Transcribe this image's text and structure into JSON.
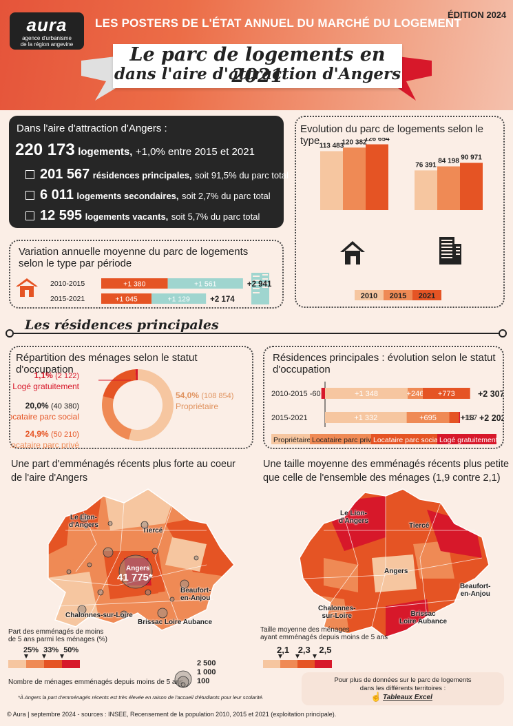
{
  "header": {
    "logo_word": "aura",
    "logo_sub1": "agence d'urbanisme",
    "logo_sub2": "de la région angevine",
    "posters": "LES POSTERS DE L'ÉTAT ANNUEL DU MARCHÉ DU LOGEMENT",
    "edition": "ÉDITION 2024",
    "title_line1": "Le parc de logements en 2021",
    "title_line2": "dans l'aire d'attraction d'Angers"
  },
  "summary": {
    "intro": "Dans l'aire d'attraction d'Angers :",
    "total_value": "220 173",
    "total_label": "logements,",
    "total_note": "+1,0% entre 2015 et 2021",
    "items": [
      {
        "value": "201 567",
        "label": "résidences principales,",
        "note": "soit 91,5% du parc total"
      },
      {
        "value": "6 011",
        "label": "logements secondaires,",
        "note": "soit 2,7% du parc total"
      },
      {
        "value": "12 595",
        "label": "logements vacants,",
        "note": "soit 5,7% du parc total"
      }
    ]
  },
  "sections": {
    "residences_title": "Les résidences principales"
  },
  "chart_data": [
    {
      "id": "evolution",
      "type": "bar",
      "title": "Evolution du parc de logements selon le type",
      "categories": [
        "Maisons",
        "Appartements"
      ],
      "icons": [
        "house-icon",
        "building-icon"
      ],
      "series": [
        {
          "name": "2010",
          "values": [
            113483,
            76391
          ],
          "labels": [
            "113 483",
            "76 391"
          ],
          "color": "#f6c6a0"
        },
        {
          "name": "2015",
          "values": [
            120382,
            84198
          ],
          "labels": [
            "120 382",
            "84 198"
          ],
          "color": "#ef8a55"
        },
        {
          "name": "2021",
          "values": [
            126654,
            90971
          ],
          "labels": [
            "126 654",
            "90 971"
          ],
          "color": "#e55424"
        }
      ]
    },
    {
      "id": "variation",
      "type": "bar",
      "stacked": true,
      "orientation": "horizontal",
      "title": "Variation annuelle moyenne du parc de logements selon le type par période",
      "categories": [
        "2010-2015",
        "2015-2021"
      ],
      "series": [
        {
          "name": "Maisons",
          "values": [
            1380,
            1045
          ],
          "labels": [
            "+1 380",
            "+1 045"
          ],
          "color": "#e55424"
        },
        {
          "name": "Appartements",
          "values": [
            1561,
            1129
          ],
          "labels": [
            "+1 561",
            "+1 129"
          ],
          "color": "#9fd5cf"
        }
      ],
      "totals": [
        "+2 941",
        "+2 174"
      ]
    },
    {
      "id": "repartition",
      "type": "pie",
      "title": "Répartition des ménages selon le statut d'occupation",
      "slices": [
        {
          "name": "Propriétaire",
          "value": 108854,
          "pct": "54,0%",
          "count": "(108 854)",
          "color": "#f6c6a0"
        },
        {
          "name": "Locataire parc privé",
          "value": 50210,
          "pct": "24,9%",
          "count": "(50 210)",
          "color": "#ef8a55"
        },
        {
          "name": "Locataire parc social",
          "value": 40380,
          "pct": "20,0%",
          "count": "(40 380)",
          "color": "#e55424"
        },
        {
          "name": "Logé gratuitement",
          "value": 2122,
          "pct": "1,1%",
          "count": "(2 122)",
          "color": "#d7182a"
        }
      ]
    },
    {
      "id": "rp_evolution",
      "type": "bar",
      "stacked": true,
      "orientation": "horizontal",
      "title": "Résidences principales : évolution selon le statut d'occupation",
      "categories": [
        "2010-2015",
        "2015-2021"
      ],
      "series": [
        {
          "name": "Propriétaire",
          "values": [
            1348,
            1332
          ],
          "labels": [
            "+1 348",
            "+1 332"
          ],
          "color": "#f6c6a0"
        },
        {
          "name": "Locataire parc privé",
          "values": [
            246,
            695
          ],
          "labels": [
            "+246",
            "+695"
          ],
          "color": "#ef8a55"
        },
        {
          "name": "Locataire parc social",
          "values": [
            773,
            157
          ],
          "labels": [
            "+773",
            "+157"
          ],
          "color": "#e55424"
        },
        {
          "name": "Logé gratuitement",
          "values": [
            -60,
            18
          ],
          "labels": [
            "-60",
            "+18"
          ],
          "color": "#d7182a"
        }
      ],
      "totals": [
        "+2 307",
        "+2 202"
      ]
    }
  ],
  "map_left": {
    "title_line1": "Une part d'emménagés récents plus forte au coeur",
    "title_line2": "de l'aire d'Angers",
    "places": [
      "Le Lion-",
      "d'Angers",
      "Tiercé",
      "Angers",
      "41 775*",
      "Beaufort-",
      "en-Anjou",
      "Chalonnes-sur-Loire",
      "Brissac Loire Aubance"
    ],
    "legend_title1": "Part des emménagés de moins",
    "legend_title2": "de 5 ans parmi les ménages (%)",
    "legend_values": [
      "25%",
      "33%",
      "50%"
    ],
    "legend_colors": [
      "#f6c6a0",
      "#ef8a55",
      "#e55424",
      "#d7182a"
    ],
    "circles_title": "Nombre de ménages emménagés depuis moins de 5 ans",
    "circle_values": [
      "2 500",
      "1 000",
      "100"
    ],
    "footnote": "*À Angers la part d'emménagés récents est très élevée en raison de l'accueil d'étudiants pour leur scolarité."
  },
  "map_right": {
    "title_line1": "Une taille moyenne des emménagés récents  plus petite",
    "title_line2": "que celle de l'ensemble des ménages (1,9 contre 2,1)",
    "places": [
      "Le Lion-",
      "d'Angers",
      "Tiercé",
      "Angers",
      "Beaufort-",
      "en-Anjou",
      "Chalonnes-",
      "sur-Loire",
      "Brissac",
      "Loire Aubance"
    ],
    "legend_title1": "Taille moyenne des ménages",
    "legend_title2": "ayant emménagés depuis moins de 5 ans",
    "legend_values": [
      "2,1",
      "2,3",
      "2,5"
    ],
    "legend_colors": [
      "#f6c6a0",
      "#ef8a55",
      "#e55424",
      "#d7182a"
    ]
  },
  "more": {
    "line1": "Pour plus de données sur le parc de logements",
    "line2": "dans les différents territoires :",
    "link": "Tableaux Excel"
  },
  "footer": "© Aura | septembre 2024 - sources : INSEE, Recensement de la population 2010, 2015 et 2021 (exploitation principale).",
  "colors": {
    "light": "#f6c6a0",
    "mid": "#ef8a55",
    "dark": "#e55424",
    "red": "#d7182a",
    "teal": "#9fd5cf",
    "header": "#e5543a"
  }
}
